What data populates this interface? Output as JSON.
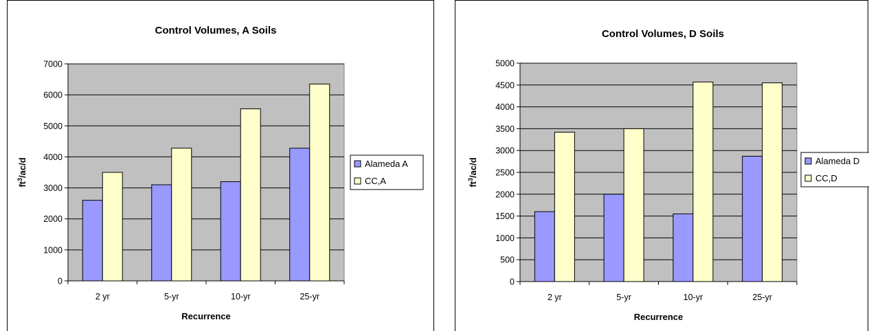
{
  "chart_data": [
    {
      "type": "bar",
      "title": "Control Volumes, A Soils",
      "xlabel": "Recurrence",
      "ylabel_base": "ft",
      "ylabel_sup": "3",
      "ylabel_rest": "/ac/d",
      "categories": [
        "2 yr",
        "5-yr",
        "10-yr",
        "25-yr"
      ],
      "ylim": [
        0,
        7000
      ],
      "yticks": [
        "0",
        "1000",
        "2000",
        "3000",
        "4000",
        "5000",
        "6000",
        "7000"
      ],
      "grid": true,
      "legend_position": "right",
      "series": [
        {
          "name": "Alameda A",
          "color": "#9999ff",
          "values": [
            2600,
            3100,
            3200,
            4280
          ]
        },
        {
          "name": "CC,A",
          "color": "#ffffcc",
          "values": [
            3500,
            4280,
            5550,
            6350
          ]
        }
      ]
    },
    {
      "type": "bar",
      "title": "Control Volumes, D Soils",
      "xlabel": "Recurrence",
      "ylabel_base": "ft",
      "ylabel_sup": "3",
      "ylabel_rest": "/ac/d",
      "categories": [
        "2 yr",
        "5-yr",
        "10-yr",
        "25-yr"
      ],
      "ylim": [
        0,
        5000
      ],
      "yticks": [
        "0",
        "500",
        "1000",
        "1500",
        "2000",
        "2500",
        "3000",
        "3500",
        "4000",
        "4500",
        "5000"
      ],
      "grid": true,
      "legend_position": "right",
      "series": [
        {
          "name": "Alameda D",
          "color": "#9999ff",
          "values": [
            1600,
            2000,
            1550,
            2870
          ]
        },
        {
          "name": "CC,D",
          "color": "#ffffcc",
          "values": [
            3420,
            3500,
            4570,
            4550
          ]
        }
      ]
    }
  ],
  "colors": {
    "plot_background": "#c0c0c0",
    "gridline": "#000000"
  }
}
